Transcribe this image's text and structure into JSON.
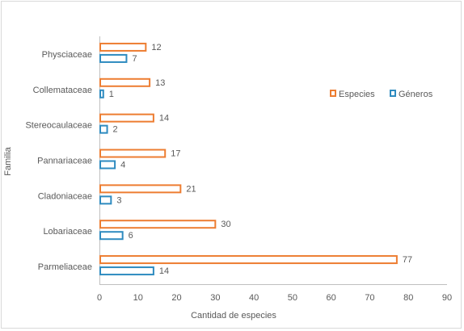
{
  "chart_data": {
    "type": "bar",
    "orientation": "horizontal",
    "categories": [
      "Parmeliaceae",
      "Lobariaceae",
      "Cladoniaceae",
      "Pannariaceae",
      "Stereocaulaceae",
      "Collemataceae",
      "Physciaceae"
    ],
    "series": [
      {
        "name": "Especies",
        "values": [
          77,
          30,
          21,
          17,
          14,
          13,
          12
        ],
        "color": "#ed7d31"
      },
      {
        "name": "Géneros",
        "values": [
          14,
          6,
          3,
          4,
          2,
          1,
          7
        ],
        "color": "#2e8bc0"
      }
    ],
    "xlabel": "Cantidad de especies",
    "ylabel": "Familia",
    "xlim": [
      0,
      90
    ],
    "xticks": [
      0,
      10,
      20,
      30,
      40,
      50,
      60,
      70,
      80,
      90
    ],
    "grid": false,
    "legend_position": "right",
    "bar_style": "outline",
    "data_labels": true
  }
}
